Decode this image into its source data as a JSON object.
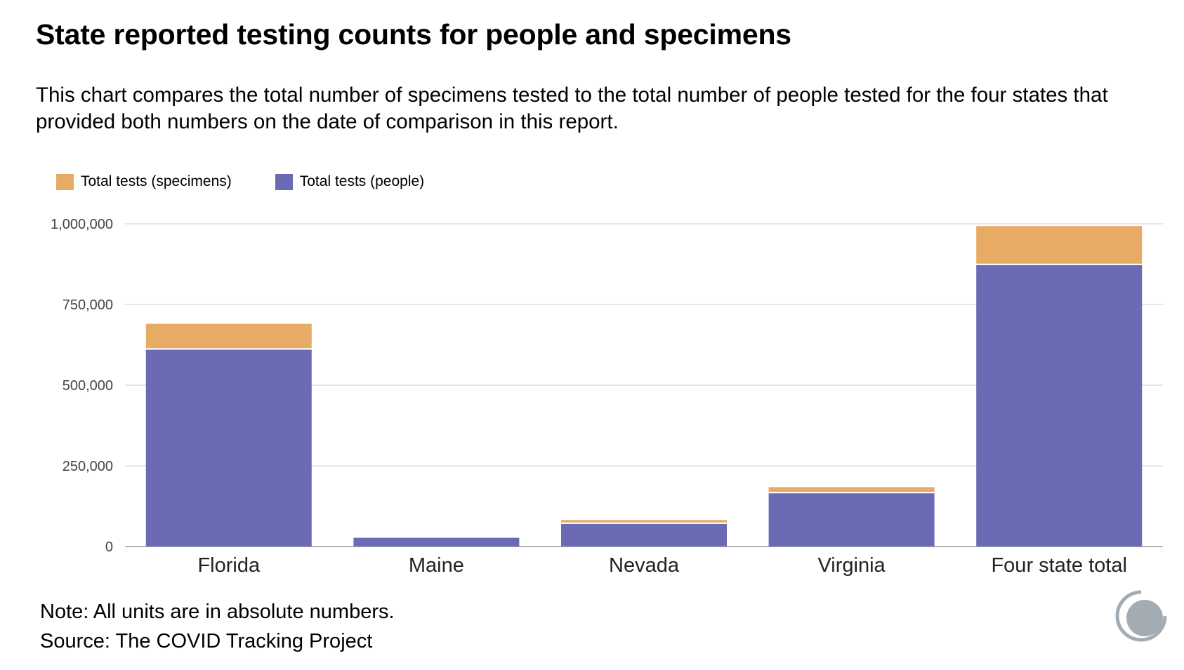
{
  "header": {
    "title": "State reported testing counts for people and specimens",
    "subtitle": "This chart compares the total number of specimens tested to the total number of people tested for the four states that provided both numbers on the date of comparison in this report."
  },
  "colors": {
    "specimens": "#e8ab66",
    "people": "#6a6ab5",
    "grid": "#dddddd",
    "axis_text": "#444444",
    "logo": "#a3abb3"
  },
  "chart_data": {
    "type": "bar",
    "stacked": true,
    "categories": [
      "Florida",
      "Maine",
      "Nevada",
      "Virginia",
      "Four state total"
    ],
    "series": [
      {
        "name": "Total tests (specimens)",
        "values": [
          80000,
          0,
          12000,
          19000,
          121000
        ]
      },
      {
        "name": "Total tests (people)",
        "values": [
          610000,
          27000,
          70000,
          165000,
          872000
        ]
      }
    ],
    "ylim": [
      0,
      1000000
    ],
    "yticks": [
      0,
      250000,
      500000,
      750000,
      1000000
    ],
    "ytick_labels": [
      "0",
      "250,000",
      "500,000",
      "750,000",
      "1,000,000"
    ],
    "grid": true,
    "legend_position": "top-left"
  },
  "footer": {
    "note": "Note: All units are in absolute numbers.",
    "source": "Source: The COVID Tracking Project"
  },
  "logo_icon": "covid-tracking-project-logo-icon"
}
